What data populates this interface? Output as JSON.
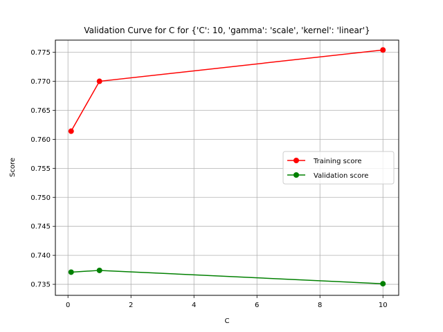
{
  "chart_data": {
    "type": "line",
    "title": "Validation Curve for C for {'C': 10, 'gamma': 'scale', 'kernel': 'linear'}",
    "xlabel": "C",
    "ylabel": "Score",
    "xlim": [
      -0.4,
      10.5
    ],
    "ylim": [
      0.7331,
      0.7771
    ],
    "x_ticks": [
      0,
      2,
      4,
      6,
      8,
      10
    ],
    "x_tick_labels": [
      "0",
      "2",
      "4",
      "6",
      "8",
      "10"
    ],
    "y_ticks": [
      0.735,
      0.74,
      0.745,
      0.75,
      0.755,
      0.76,
      0.765,
      0.77,
      0.775
    ],
    "y_tick_labels": [
      "0.735",
      "0.740",
      "0.745",
      "0.750",
      "0.755",
      "0.760",
      "0.765",
      "0.770",
      "0.775"
    ],
    "grid": true,
    "legend_position": "center-right",
    "x": [
      0.1,
      1,
      10
    ],
    "series": [
      {
        "name": "Training score",
        "color": "#ff0000",
        "values": [
          0.7614,
          0.77,
          0.7754
        ]
      },
      {
        "name": "Validation score",
        "color": "#008000",
        "values": [
          0.7371,
          0.7374,
          0.7351
        ]
      }
    ]
  }
}
